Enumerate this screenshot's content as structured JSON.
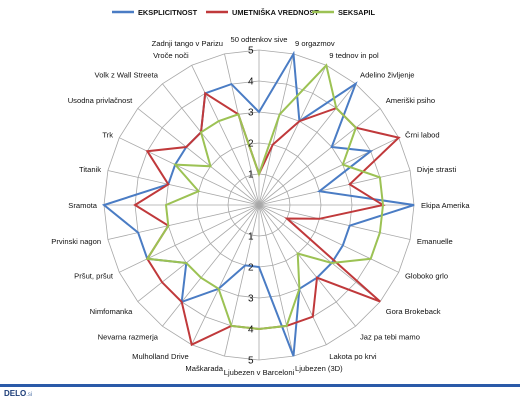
{
  "chart_data": {
    "type": "radar",
    "categories": [
      "50 odtenkov sive",
      "9 orgazmov",
      "9 tednov in pol",
      "Adelino življenje",
      "Ameriški psiho",
      "Črni labod",
      "Divje strasti",
      "Ekipa Amerika",
      "Emanuelle",
      "Globoko grlo",
      "Gora Brokeback",
      "Jaz pa tebi mamo",
      "Lakota po krvi",
      "Ljubezen (3D)",
      "Ljubezen v Barceloni",
      "Maškarada",
      "Mulholland Drive",
      "Nevarna razmerja",
      "Nimfomanka",
      "Pršut, pršut",
      "Prvinski nagon",
      "Sramota",
      "Titanik",
      "Trk",
      "Usodna privlačnost",
      "Volk z Wall Streeta",
      "Vroče noči",
      "Zadnji tango v Parizu"
    ],
    "series": [
      {
        "name": "EKSPLICITNOST",
        "color": "#4a7cc4",
        "values": [
          3,
          5,
          3,
          5,
          3,
          4,
          2,
          5,
          3,
          3,
          3,
          3,
          3,
          5,
          2,
          2,
          3,
          4,
          3,
          4,
          4,
          5,
          3,
          3,
          3,
          3,
          4,
          4
        ]
      },
      {
        "name": "UMETNIŠKA VREDNOST",
        "color": "#c0393b",
        "values": [
          1,
          2,
          3,
          4,
          4,
          5,
          3,
          4,
          2,
          1,
          5,
          3,
          4,
          4,
          4,
          4,
          5,
          4,
          4,
          4,
          3,
          4,
          3,
          4,
          3,
          3,
          4,
          3
        ]
      },
      {
        "name": "SEKSAPIL",
        "color": "#9cc254",
        "values": [
          1,
          3,
          5,
          4,
          4,
          3,
          4,
          4,
          4,
          4,
          3,
          2,
          3,
          4,
          4,
          4,
          3,
          3,
          3,
          4,
          3,
          3,
          2,
          3,
          2,
          3,
          3,
          3
        ]
      }
    ],
    "rlim": [
      0,
      5
    ],
    "ticks": [
      "1",
      "2",
      "3",
      "4",
      "5"
    ],
    "grid": true,
    "legend": "top-center"
  },
  "footer": {
    "brand": "DELO",
    "brand_tld": ".si"
  }
}
